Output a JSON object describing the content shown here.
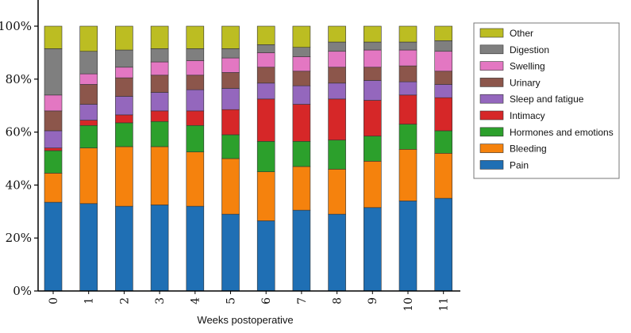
{
  "chart_data": {
    "type": "bar",
    "stacked": true,
    "xlabel": "Weeks postoperative",
    "ylabel": "",
    "ylim": [
      0,
      100
    ],
    "yticks": [
      "0%",
      "20%",
      "40%",
      "60%",
      "80%",
      "100%"
    ],
    "categories": [
      "0",
      "1",
      "2",
      "3",
      "4",
      "5",
      "6",
      "7",
      "8",
      "9",
      "10",
      "11"
    ],
    "legend_position": "right",
    "series": [
      {
        "name": "Pain",
        "color": "#1f6fb4",
        "values": [
          33.5,
          33,
          32,
          32.5,
          32,
          29,
          26.5,
          30.5,
          29,
          31.5,
          34,
          35
        ]
      },
      {
        "name": "Bleeding",
        "color": "#f5820d",
        "values": [
          11,
          21,
          22.5,
          22,
          20.5,
          21,
          18.5,
          16.5,
          17,
          17.5,
          19.5,
          17
        ]
      },
      {
        "name": "Hormones and emotions",
        "color": "#2ca02c",
        "values": [
          8.5,
          8.5,
          9,
          9.5,
          10,
          9,
          11.5,
          9.5,
          11,
          9.5,
          9.5,
          8.5
        ]
      },
      {
        "name": "Intimacy",
        "color": "#d62728",
        "values": [
          1,
          2,
          3,
          4,
          5.5,
          9.5,
          16,
          14,
          15.5,
          13.5,
          11,
          12.5
        ]
      },
      {
        "name": "Sleep and fatigue",
        "color": "#9467bd",
        "values": [
          6.5,
          6,
          7,
          7,
          8,
          8,
          6,
          7,
          6,
          7.5,
          5,
          5
        ]
      },
      {
        "name": "Urinary",
        "color": "#8c564b",
        "values": [
          7.5,
          7.5,
          7,
          6.5,
          5.5,
          6,
          6,
          5.5,
          6,
          5,
          6,
          5
        ]
      },
      {
        "name": "Swelling",
        "color": "#e377c2",
        "values": [
          6,
          4,
          4,
          5,
          5.5,
          5.5,
          5.5,
          5.5,
          6,
          6.5,
          6,
          7.5
        ]
      },
      {
        "name": "Digestion",
        "color": "#7f7f7f",
        "values": [
          17.5,
          8.5,
          6.5,
          5,
          4.5,
          3.5,
          3,
          3.5,
          3.5,
          3,
          3,
          4
        ]
      },
      {
        "name": "Other",
        "color": "#bcbd22",
        "values": [
          8.5,
          9.5,
          9,
          8.5,
          8.5,
          8.5,
          7,
          8,
          6,
          6,
          6,
          5.5
        ]
      }
    ],
    "legend_order": [
      "Other",
      "Digestion",
      "Swelling",
      "Urinary",
      "Sleep and fatigue",
      "Intimacy",
      "Hormones and emotions",
      "Bleeding",
      "Pain"
    ]
  }
}
